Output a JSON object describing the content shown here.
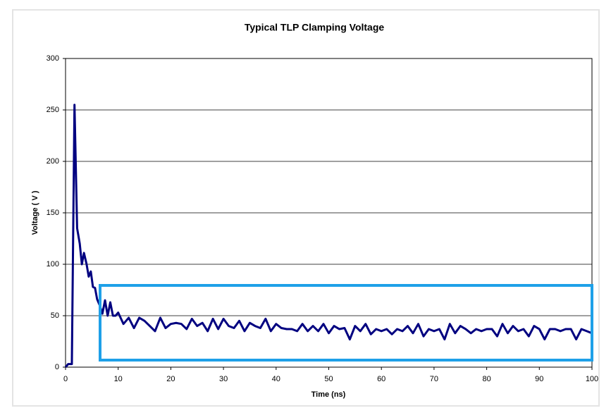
{
  "chart_data": {
    "type": "line",
    "title": "Typical TLP Clamping Voltage",
    "x_label": "Time (ns)",
    "y_label": "Voltage ( V )",
    "x": [
      0,
      0.5,
      1,
      1.2,
      1.7,
      2.2,
      2.7,
      3.1,
      3.5,
      4,
      4.4,
      4.8,
      5.2,
      5.6,
      6,
      6.5,
      7,
      7.5,
      8,
      8.5,
      9,
      9.5,
      10,
      11,
      12,
      13,
      14,
      15,
      16,
      17,
      18,
      19,
      20,
      21,
      22,
      23,
      24,
      25,
      26,
      27,
      28,
      29,
      30,
      31,
      32,
      33,
      34,
      35,
      36,
      37,
      38,
      39,
      40,
      41,
      42,
      43,
      44,
      45,
      46,
      47,
      48,
      49,
      50,
      51,
      52,
      53,
      54,
      55,
      56,
      57,
      58,
      59,
      60,
      61,
      62,
      63,
      64,
      65,
      66,
      67,
      68,
      69,
      70,
      71,
      72,
      73,
      74,
      75,
      76,
      77,
      78,
      79,
      80,
      81,
      82,
      83,
      84,
      85,
      86,
      87,
      88,
      89,
      90,
      91,
      92,
      93,
      94,
      95,
      96,
      97,
      98,
      99,
      100
    ],
    "values": [
      0,
      3,
      3,
      3,
      255,
      135,
      120,
      100,
      111,
      100,
      88,
      93,
      78,
      77,
      66,
      60,
      52,
      65,
      50,
      63,
      50,
      50,
      53,
      42,
      48,
      38,
      48,
      45,
      40,
      35,
      48,
      38,
      42,
      43,
      42,
      37,
      47,
      40,
      43,
      35,
      47,
      37,
      47,
      40,
      38,
      45,
      35,
      43,
      40,
      38,
      47,
      35,
      42,
      38,
      37,
      37,
      35,
      42,
      35,
      40,
      35,
      42,
      33,
      40,
      37,
      38,
      27,
      40,
      35,
      42,
      32,
      37,
      35,
      37,
      32,
      37,
      35,
      40,
      33,
      42,
      30,
      37,
      35,
      37,
      27,
      42,
      33,
      40,
      37,
      33,
      37,
      35,
      37,
      37,
      30,
      42,
      33,
      40,
      35,
      37,
      30,
      40,
      37,
      27,
      37,
      37,
      35,
      37,
      37,
      27,
      37,
      35,
      33
    ],
    "color": "#000080",
    "xlim": [
      0,
      100
    ],
    "xticks": [
      0,
      10,
      20,
      30,
      40,
      50,
      60,
      70,
      80,
      90,
      100
    ],
    "ylim": [
      0,
      300
    ],
    "yticks": [
      0,
      50,
      100,
      150,
      200,
      250,
      300
    ],
    "grid": true
  }
}
